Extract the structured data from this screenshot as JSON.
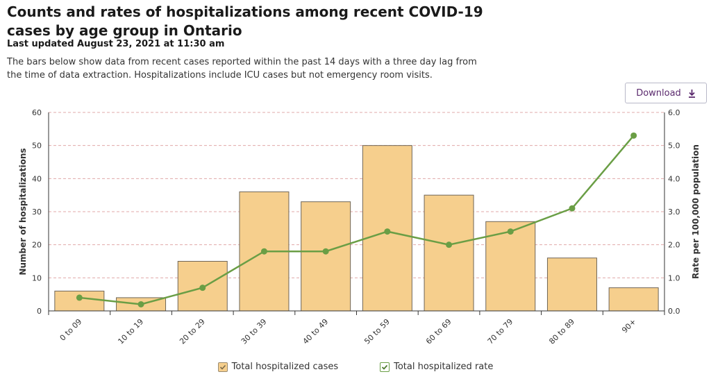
{
  "header": {
    "title": "Counts and rates of hospitalizations among recent COVID-19 cases by age group in Ontario",
    "updated": "Last updated August 23, 2021 at 11:30 am",
    "description": "The bars below show data from recent cases reported within the past 14 days with a three day lag from the time of data extraction. Hospitalizations include ICU cases but not emergency room visits."
  },
  "toolbar": {
    "download_label": "Download"
  },
  "icons": {
    "download": "download-icon",
    "check": "check-icon"
  },
  "colors": {
    "bar_fill": "#f6cf8d",
    "bar_stroke": "#6e6558",
    "line": "#6a9e45",
    "grid": "#e0a8a8",
    "button_text": "#5b2a6e"
  },
  "chart_data": {
    "type": "bar",
    "categories": [
      "0 to 09",
      "10 to 19",
      "20 to 29",
      "30 to 39",
      "40 to 49",
      "50 to 59",
      "60 to 69",
      "70 to 79",
      "80 to 89",
      "90+"
    ],
    "series": [
      {
        "name": "Total hospitalized cases",
        "type": "bar",
        "axis": "left",
        "values": [
          6,
          4,
          15,
          36,
          33,
          50,
          35,
          27,
          16,
          7
        ]
      },
      {
        "name": "Total hospitalized rate",
        "type": "line",
        "axis": "right",
        "values": [
          0.4,
          0.2,
          0.7,
          1.8,
          1.8,
          2.4,
          2.0,
          2.4,
          3.1,
          5.3
        ]
      }
    ],
    "ylabel": "Number of hospitalizations",
    "y2label": "Rate per 100,000 population",
    "ylim": [
      0,
      60
    ],
    "y2lim": [
      0,
      6
    ],
    "yticks": [
      "0",
      "10",
      "20",
      "30",
      "40",
      "50",
      "60"
    ],
    "y2ticks": [
      "0.0",
      "1.0",
      "2.0",
      "3.0",
      "4.0",
      "5.0",
      "6.0"
    ],
    "grid": true,
    "legend": "bottom-center"
  }
}
